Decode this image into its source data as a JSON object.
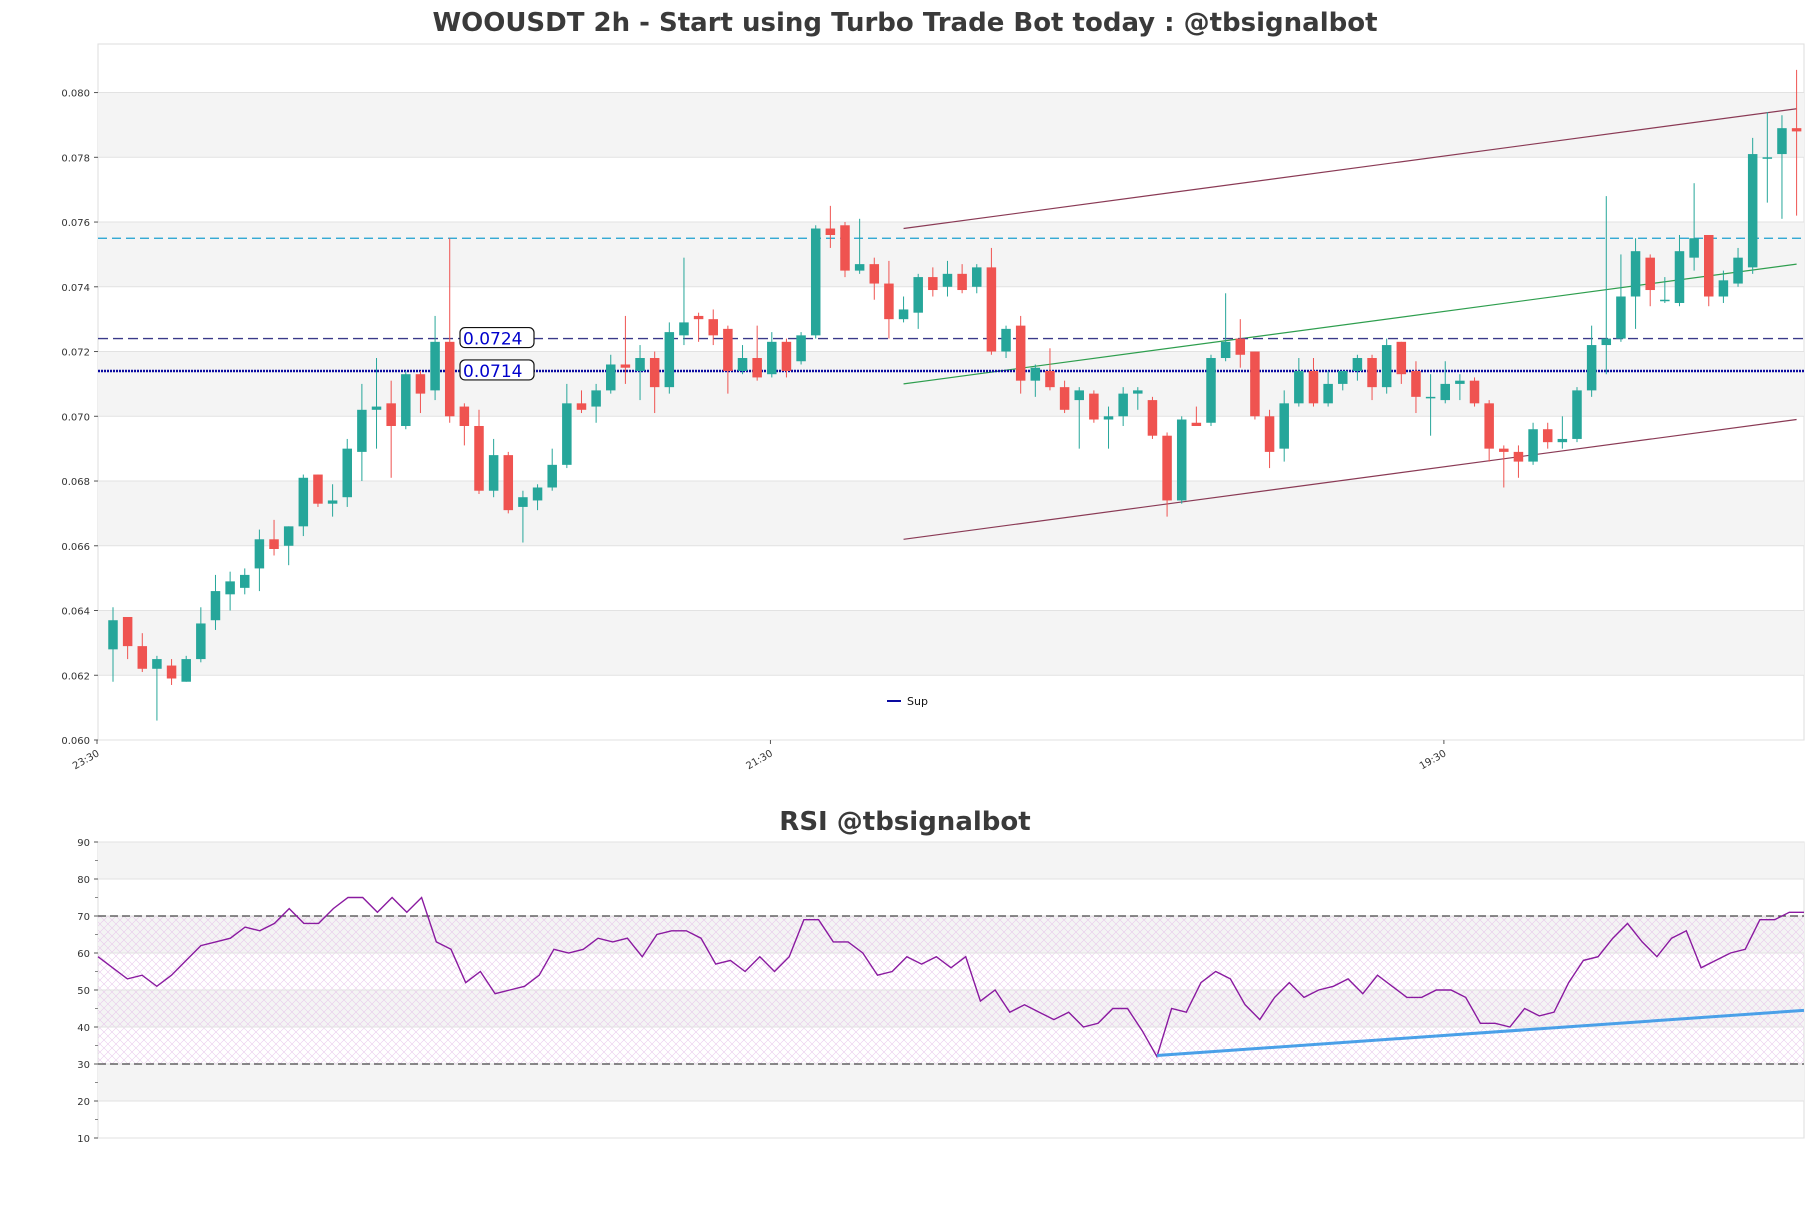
{
  "colors": {
    "up": "#26a69a",
    "down": "#ef5350",
    "resistance": "#1a9fd0",
    "level_dashed": "#3a3a8a",
    "level_dotted": "#0a0aa0",
    "channel": "#8a3a55",
    "trend_green": "#2e9e4e",
    "rsi_line": "#8a1aa0",
    "rsi_trend": "#4aa0e8"
  },
  "chart_data": [
    {
      "type": "candlestick",
      "title": "WOOUSDT 2h - Start using Turbo Trade Bot today : @tbsignalbot",
      "ylim": [
        0.06,
        0.0815
      ],
      "yticks": [
        "0.060",
        "0.062",
        "0.064",
        "0.066",
        "0.068",
        "0.070",
        "0.072",
        "0.074",
        "0.076",
        "0.078",
        "0.080"
      ],
      "xtick_labels": [
        {
          "index": 0,
          "label": "23:30"
        },
        {
          "index": 46,
          "label": "21:30"
        },
        {
          "index": 92,
          "label": "19:30"
        }
      ],
      "legend": {
        "label": "Sup",
        "position": "bottom-center"
      },
      "levels": [
        {
          "value": 0.0755,
          "style": "dashed",
          "label": ""
        },
        {
          "value": 0.0724,
          "style": "dashed",
          "label": "0.0724"
        },
        {
          "value": 0.0714,
          "style": "dotted",
          "label": "0.0714"
        }
      ],
      "trendlines": [
        {
          "kind": "channel_top",
          "from": [
            54,
            0.0758
          ],
          "to": [
            115,
            0.0795
          ]
        },
        {
          "kind": "channel_bottom",
          "from": [
            54,
            0.0662
          ],
          "to": [
            115,
            0.0699
          ]
        },
        {
          "kind": "green",
          "from": [
            54,
            0.071
          ],
          "to": [
            115,
            0.0747
          ]
        }
      ],
      "candles": [
        [
          0.0628,
          0.0637,
          0.0641,
          0.0618
        ],
        [
          0.0638,
          0.0629,
          0.0638,
          0.0625
        ],
        [
          0.0629,
          0.0622,
          0.0633,
          0.0621
        ],
        [
          0.0622,
          0.0625,
          0.0626,
          0.0606
        ],
        [
          0.0623,
          0.0619,
          0.0625,
          0.0617
        ],
        [
          0.0618,
          0.0625,
          0.0626,
          0.0618
        ],
        [
          0.0625,
          0.0636,
          0.0641,
          0.0624
        ],
        [
          0.0637,
          0.0646,
          0.0651,
          0.0634
        ],
        [
          0.0645,
          0.0649,
          0.0652,
          0.064
        ],
        [
          0.0647,
          0.0651,
          0.0653,
          0.0645
        ],
        [
          0.0653,
          0.0662,
          0.0665,
          0.0646
        ],
        [
          0.0662,
          0.0659,
          0.0668,
          0.0657
        ],
        [
          0.066,
          0.0666,
          0.0666,
          0.0654
        ],
        [
          0.0666,
          0.0681,
          0.0682,
          0.0663
        ],
        [
          0.0682,
          0.0673,
          0.0682,
          0.0672
        ],
        [
          0.0673,
          0.0674,
          0.0679,
          0.0669
        ],
        [
          0.0675,
          0.069,
          0.0693,
          0.0672
        ],
        [
          0.0689,
          0.0702,
          0.071,
          0.068
        ],
        [
          0.0702,
          0.0703,
          0.0718,
          0.069
        ],
        [
          0.0704,
          0.0697,
          0.0711,
          0.0681
        ],
        [
          0.0697,
          0.0713,
          0.0714,
          0.0696
        ],
        [
          0.0713,
          0.0707,
          0.0714,
          0.0701
        ],
        [
          0.0708,
          0.0723,
          0.0731,
          0.0705
        ],
        [
          0.0723,
          0.07,
          0.0755,
          0.0698
        ],
        [
          0.0703,
          0.0697,
          0.0704,
          0.0691
        ],
        [
          0.0697,
          0.0677,
          0.0702,
          0.0676
        ],
        [
          0.0677,
          0.0688,
          0.0693,
          0.0675
        ],
        [
          0.0688,
          0.0671,
          0.0689,
          0.067
        ],
        [
          0.0672,
          0.0675,
          0.0677,
          0.0661
        ],
        [
          0.0674,
          0.0678,
          0.0679,
          0.0671
        ],
        [
          0.0678,
          0.0685,
          0.069,
          0.0677
        ],
        [
          0.0685,
          0.0704,
          0.071,
          0.0684
        ],
        [
          0.0704,
          0.0702,
          0.0708,
          0.0701
        ],
        [
          0.0703,
          0.0708,
          0.071,
          0.0698
        ],
        [
          0.0708,
          0.0716,
          0.0719,
          0.0707
        ],
        [
          0.0716,
          0.0715,
          0.0731,
          0.071
        ],
        [
          0.0714,
          0.0718,
          0.0722,
          0.0705
        ],
        [
          0.0718,
          0.0709,
          0.072,
          0.0701
        ],
        [
          0.0709,
          0.0726,
          0.0729,
          0.0707
        ],
        [
          0.0725,
          0.0729,
          0.0749,
          0.0722
        ],
        [
          0.0731,
          0.073,
          0.0732,
          0.0723
        ],
        [
          0.073,
          0.0725,
          0.0733,
          0.0722
        ],
        [
          0.0727,
          0.0714,
          0.0728,
          0.0707
        ],
        [
          0.0714,
          0.0718,
          0.0722,
          0.0713
        ],
        [
          0.0718,
          0.0712,
          0.0728,
          0.0711
        ],
        [
          0.0713,
          0.0723,
          0.0726,
          0.0712
        ],
        [
          0.0723,
          0.0714,
          0.0724,
          0.0712
        ],
        [
          0.0717,
          0.0725,
          0.0726,
          0.0716
        ],
        [
          0.0725,
          0.0758,
          0.0759,
          0.0724
        ],
        [
          0.0758,
          0.0756,
          0.0765,
          0.0752
        ],
        [
          0.0759,
          0.0745,
          0.076,
          0.0743
        ],
        [
          0.0745,
          0.0747,
          0.0761,
          0.0744
        ],
        [
          0.0747,
          0.0741,
          0.0749,
          0.0736
        ],
        [
          0.0741,
          0.073,
          0.0748,
          0.0724
        ],
        [
          0.073,
          0.0733,
          0.0737,
          0.0729
        ],
        [
          0.0732,
          0.0743,
          0.0744,
          0.0727
        ],
        [
          0.0743,
          0.0739,
          0.0746,
          0.0737
        ],
        [
          0.074,
          0.0744,
          0.0748,
          0.0737
        ],
        [
          0.0744,
          0.0739,
          0.0747,
          0.0738
        ],
        [
          0.074,
          0.0746,
          0.0747,
          0.0738
        ],
        [
          0.0746,
          0.072,
          0.0752,
          0.0719
        ],
        [
          0.072,
          0.0727,
          0.0728,
          0.0718
        ],
        [
          0.0728,
          0.0711,
          0.0731,
          0.0707
        ],
        [
          0.0711,
          0.0715,
          0.0716,
          0.0706
        ],
        [
          0.0714,
          0.0709,
          0.0721,
          0.0708
        ],
        [
          0.0709,
          0.0702,
          0.0711,
          0.0701
        ],
        [
          0.0705,
          0.0708,
          0.0709,
          0.069
        ],
        [
          0.0707,
          0.0699,
          0.0708,
          0.0698
        ],
        [
          0.0699,
          0.07,
          0.0703,
          0.069
        ],
        [
          0.07,
          0.0707,
          0.0709,
          0.0697
        ],
        [
          0.0707,
          0.0708,
          0.0709,
          0.0702
        ],
        [
          0.0705,
          0.0694,
          0.0706,
          0.0693
        ],
        [
          0.0694,
          0.0674,
          0.0695,
          0.0669
        ],
        [
          0.0674,
          0.0699,
          0.07,
          0.0673
        ],
        [
          0.0698,
          0.0697,
          0.0703,
          0.0697
        ],
        [
          0.0698,
          0.0718,
          0.0719,
          0.0697
        ],
        [
          0.0718,
          0.0723,
          0.0738,
          0.0717
        ],
        [
          0.0724,
          0.0719,
          0.073,
          0.0715
        ],
        [
          0.072,
          0.07,
          0.072,
          0.0699
        ],
        [
          0.07,
          0.0689,
          0.0702,
          0.0684
        ],
        [
          0.069,
          0.0704,
          0.0708,
          0.0686
        ],
        [
          0.0704,
          0.0714,
          0.0718,
          0.0703
        ],
        [
          0.0714,
          0.0704,
          0.0718,
          0.0703
        ],
        [
          0.0704,
          0.071,
          0.0714,
          0.0703
        ],
        [
          0.071,
          0.0714,
          0.0714,
          0.0708
        ],
        [
          0.0714,
          0.0718,
          0.0719,
          0.0711
        ],
        [
          0.0718,
          0.0709,
          0.0719,
          0.0705
        ],
        [
          0.0709,
          0.0722,
          0.0724,
          0.0707
        ],
        [
          0.0723,
          0.0713,
          0.0723,
          0.071
        ],
        [
          0.0714,
          0.0706,
          0.0717,
          0.0701
        ],
        [
          0.0706,
          0.0706,
          0.0713,
          0.0694
        ],
        [
          0.0705,
          0.071,
          0.0717,
          0.0704
        ],
        [
          0.071,
          0.0711,
          0.0713,
          0.0705
        ],
        [
          0.0711,
          0.0704,
          0.0712,
          0.0703
        ],
        [
          0.0704,
          0.069,
          0.0705,
          0.0686
        ],
        [
          0.069,
          0.0689,
          0.0691,
          0.0678
        ],
        [
          0.0689,
          0.0686,
          0.0691,
          0.0681
        ],
        [
          0.0686,
          0.0696,
          0.0698,
          0.0685
        ],
        [
          0.0696,
          0.0692,
          0.0698,
          0.069
        ],
        [
          0.0692,
          0.0693,
          0.07,
          0.069
        ],
        [
          0.0693,
          0.0708,
          0.0709,
          0.0692
        ],
        [
          0.0708,
          0.0722,
          0.0728,
          0.0706
        ],
        [
          0.0722,
          0.0724,
          0.0768,
          0.0713
        ],
        [
          0.0724,
          0.0737,
          0.075,
          0.0723
        ],
        [
          0.0737,
          0.0751,
          0.0755,
          0.0727
        ],
        [
          0.0749,
          0.0739,
          0.075,
          0.0734
        ],
        [
          0.0736,
          0.0736,
          0.0743,
          0.0735
        ],
        [
          0.0735,
          0.0751,
          0.0756,
          0.0734
        ],
        [
          0.0749,
          0.0755,
          0.0772,
          0.0745
        ],
        [
          0.0756,
          0.0737,
          0.0756,
          0.0734
        ],
        [
          0.0737,
          0.0742,
          0.0745,
          0.0735
        ],
        [
          0.0741,
          0.0749,
          0.0752,
          0.074
        ],
        [
          0.0746,
          0.0781,
          0.0786,
          0.0744
        ],
        [
          0.078,
          0.078,
          0.0794,
          0.0766
        ],
        [
          0.0781,
          0.0789,
          0.0793,
          0.0761
        ],
        [
          0.0789,
          0.0788,
          0.0807,
          0.0762
        ]
      ]
    },
    {
      "type": "line",
      "title": "RSI @tbsignalbot",
      "ylim": [
        10,
        90
      ],
      "yticks": [
        "10",
        "20",
        "30",
        "40",
        "50",
        "60",
        "70",
        "80",
        "90"
      ],
      "levels": [
        30,
        70
      ],
      "rsi_trend": {
        "from": [
          72,
          32.3
        ],
        "to": [
          116,
          44.5
        ]
      },
      "values": [
        59,
        56,
        53,
        54,
        51,
        54,
        58,
        62,
        63,
        64,
        67,
        66,
        68,
        72,
        68,
        68,
        72,
        75,
        75,
        71,
        75,
        71,
        75,
        63,
        61,
        52,
        55,
        49,
        50,
        51,
        54,
        61,
        60,
        61,
        64,
        63,
        64,
        59,
        65,
        66,
        66,
        64,
        57,
        58,
        55,
        59,
        55,
        59,
        69,
        69,
        63,
        63,
        60,
        54,
        55,
        59,
        57,
        59,
        56,
        59,
        47,
        50,
        44,
        46,
        44,
        42,
        44,
        40,
        41,
        45,
        45,
        39,
        32,
        45,
        44,
        52,
        55,
        53,
        46,
        42,
        48,
        52,
        48,
        50,
        51,
        53,
        49,
        54,
        51,
        48,
        48,
        50,
        50,
        48,
        41,
        41,
        40,
        45,
        43,
        44,
        52,
        58,
        59,
        64,
        68,
        63,
        59,
        64,
        66,
        56,
        58,
        60,
        61,
        69,
        69,
        71,
        71
      ]
    }
  ]
}
